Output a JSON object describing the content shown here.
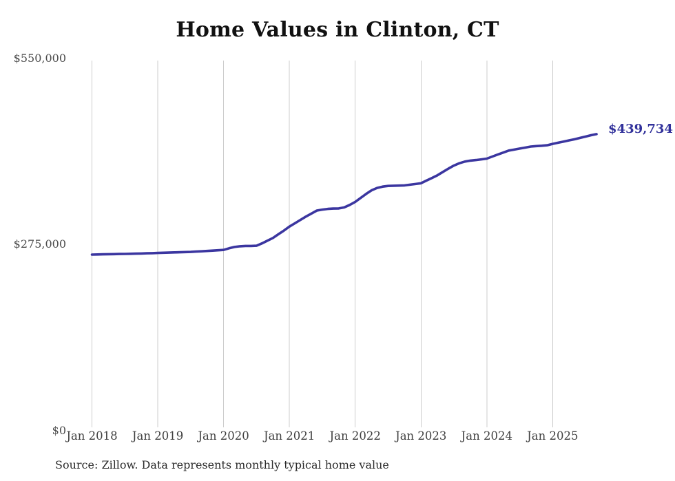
{
  "title": "Home Values in Clinton, CT",
  "footer": {
    "source_note": "Source: Zillow. Data represents monthly typical home value"
  },
  "colors": {
    "line": "#3b36a0",
    "end_label": "#31319b",
    "gridline": "#cccccc",
    "title_text": "#111111",
    "x_tick_text": "#3e3e3e",
    "y_tick_text": "#4c4c4c",
    "source_text": "#2b2b2b",
    "background": "#ffffff"
  },
  "chart_data": {
    "type": "line",
    "title": "Home Values in Clinton, CT",
    "xlabel": "",
    "ylabel": "",
    "ylim": [
      0,
      550000
    ],
    "grid": "vertical-only",
    "legend": "none",
    "frequency": "monthly",
    "x_start": "Jan 2018",
    "x_end": "Sep 2025",
    "x_tick_labels": [
      "Jan 2018",
      "Jan 2019",
      "Jan 2020",
      "Jan 2021",
      "Jan 2022",
      "Jan 2023",
      "Jan 2024",
      "Jan 2025"
    ],
    "y_ticks": [
      {
        "label": "$0",
        "value": 0
      },
      {
        "label": "$275,000",
        "value": 275000
      },
      {
        "label": "$550,000",
        "value": 550000
      }
    ],
    "series": [
      {
        "name": "Typical home value",
        "final_value_label": "$439,734",
        "values": [
          259000,
          259200,
          259400,
          259600,
          259700,
          259900,
          260000,
          260200,
          260500,
          260700,
          261000,
          261200,
          261500,
          261800,
          262000,
          262300,
          262500,
          262800,
          263000,
          263500,
          264000,
          264500,
          265000,
          265500,
          266000,
          268500,
          270500,
          271500,
          272000,
          272000,
          272300,
          275800,
          279800,
          284000,
          289500,
          295000,
          301000,
          306000,
          311000,
          316000,
          320500,
          325000,
          326500,
          327500,
          328000,
          328200,
          329800,
          333500,
          338000,
          344000,
          350000,
          355500,
          359000,
          361000,
          362000,
          362300,
          362500,
          362800,
          363800,
          364900,
          366000,
          370000,
          374000,
          378000,
          383000,
          388000,
          392500,
          396000,
          398500,
          400000,
          400800,
          401800,
          403000,
          406000,
          409000,
          412000,
          415000,
          416500,
          418000,
          419500,
          421000,
          421700,
          422300,
          423000,
          425000,
          426800,
          428500,
          430300,
          432000,
          434000,
          436000,
          438000,
          439734
        ]
      }
    ]
  }
}
